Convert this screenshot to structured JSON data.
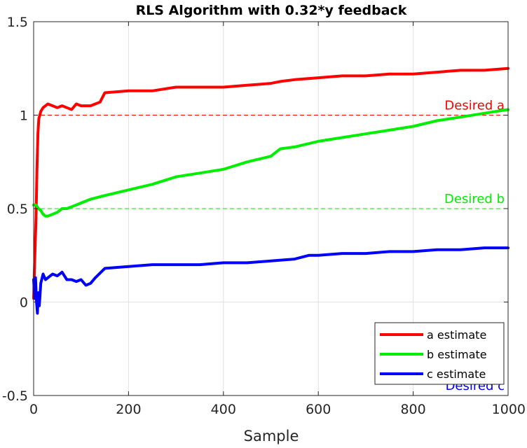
{
  "chart_data": {
    "type": "line",
    "title": "RLS Algorithm with 0.32*y feedback",
    "xlabel": "Sample",
    "ylabel": "",
    "xlim": [
      0,
      1000
    ],
    "ylim": [
      -0.5,
      1.5
    ],
    "x_ticks": [
      0,
      200,
      400,
      600,
      800,
      1000
    ],
    "y_ticks": [
      -0.5,
      0,
      0.5,
      1,
      1.5
    ],
    "x_tick_labels": [
      "0",
      "200",
      "400",
      "600",
      "800",
      "1000"
    ],
    "y_tick_labels": [
      "-0.5",
      "0",
      "0.5",
      "1",
      "1.5"
    ],
    "grid": true,
    "legend_placement": "bottom-right",
    "series": [
      {
        "name": "a estimate",
        "color": "#ff0000",
        "x": [
          0,
          3,
          5,
          7,
          9,
          11,
          13,
          15,
          20,
          25,
          30,
          40,
          50,
          60,
          70,
          80,
          90,
          100,
          110,
          120,
          130,
          140,
          150,
          200,
          250,
          300,
          350,
          400,
          450,
          500,
          520,
          550,
          600,
          650,
          700,
          750,
          800,
          850,
          900,
          950,
          1000
        ],
        "y": [
          0.02,
          0.28,
          0.45,
          0.7,
          0.9,
          0.98,
          1.0,
          1.02,
          1.04,
          1.05,
          1.06,
          1.05,
          1.04,
          1.05,
          1.04,
          1.03,
          1.06,
          1.05,
          1.05,
          1.05,
          1.06,
          1.07,
          1.12,
          1.13,
          1.13,
          1.15,
          1.15,
          1.15,
          1.16,
          1.17,
          1.18,
          1.19,
          1.2,
          1.21,
          1.21,
          1.22,
          1.22,
          1.23,
          1.24,
          1.24,
          1.25
        ]
      },
      {
        "name": "b estimate",
        "color": "#00ee00",
        "x": [
          0,
          5,
          10,
          15,
          20,
          25,
          30,
          40,
          50,
          60,
          70,
          80,
          90,
          100,
          120,
          150,
          200,
          250,
          300,
          350,
          400,
          450,
          500,
          520,
          550,
          600,
          650,
          700,
          750,
          800,
          850,
          900,
          950,
          1000
        ],
        "y": [
          0.52,
          0.52,
          0.5,
          0.49,
          0.47,
          0.46,
          0.46,
          0.47,
          0.48,
          0.5,
          0.5,
          0.51,
          0.52,
          0.53,
          0.55,
          0.57,
          0.6,
          0.63,
          0.67,
          0.69,
          0.71,
          0.75,
          0.78,
          0.82,
          0.83,
          0.86,
          0.88,
          0.9,
          0.92,
          0.94,
          0.97,
          0.99,
          1.01,
          1.03
        ]
      },
      {
        "name": "c estimate",
        "color": "#0000ff",
        "x": [
          0,
          2,
          4,
          6,
          8,
          10,
          12,
          15,
          20,
          25,
          30,
          40,
          50,
          60,
          70,
          80,
          90,
          100,
          110,
          120,
          130,
          150,
          200,
          250,
          300,
          350,
          400,
          450,
          500,
          550,
          580,
          600,
          650,
          700,
          750,
          800,
          850,
          900,
          950,
          1000
        ],
        "y": [
          0.12,
          0.02,
          0.13,
          0.0,
          -0.06,
          0.05,
          -0.02,
          0.1,
          0.15,
          0.12,
          0.13,
          0.15,
          0.14,
          0.16,
          0.12,
          0.12,
          0.11,
          0.12,
          0.09,
          0.1,
          0.13,
          0.18,
          0.19,
          0.2,
          0.2,
          0.2,
          0.21,
          0.21,
          0.22,
          0.23,
          0.25,
          0.25,
          0.26,
          0.26,
          0.27,
          0.27,
          0.28,
          0.28,
          0.29,
          0.29
        ]
      }
    ],
    "reference_lines": [
      {
        "y": 1,
        "label": "Desired a",
        "color": "#ff0000"
      },
      {
        "y": 0.5,
        "label": "Desired b",
        "color": "#00ee00"
      },
      {
        "y": -0.5,
        "label": "Desired c",
        "color": "#0000ff"
      }
    ]
  }
}
